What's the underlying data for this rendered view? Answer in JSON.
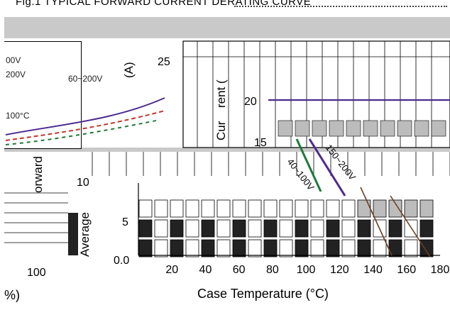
{
  "figure": {
    "title": "Fig.1 TYPICAL FORWARD CURRENT DERATING CURVE"
  },
  "left_panel": {
    "fragments": [
      "00V",
      "200V",
      "60~200V",
      "100°C",
      "(A)",
      "orward",
      "100",
      "%)"
    ]
  },
  "colors": {
    "grid": "#000000",
    "band": "#c9c9c9",
    "cell_dark": "#222222",
    "cell_gray": "#bcbcbc",
    "series_purple": "#4b2a8f",
    "series_green": "#1f7a3a",
    "series_red": "#c0392b",
    "series_brown": "#6b3f22"
  },
  "chart_data": {
    "type": "line",
    "title": "",
    "xlabel": "Case Temperature (°C)",
    "ylabel": "Average Forward Current (A)",
    "ylabel_visible": [
      "Average",
      "Cur",
      "rent ("
    ],
    "xlim": [
      0,
      180
    ],
    "ylim": [
      0,
      25
    ],
    "x_ticks": [
      20,
      40,
      60,
      80,
      100,
      120,
      140,
      160,
      180
    ],
    "y_ticks": [
      "0.0",
      "5",
      "10",
      "15",
      "20",
      "25"
    ],
    "series": [
      {
        "name": "40~100V",
        "x": [
          0,
          100,
          125
        ],
        "y": [
          20,
          20,
          0
        ]
      },
      {
        "name": "150~200V",
        "x": [
          0,
          110,
          135
        ],
        "y": [
          20,
          20,
          0
        ]
      },
      {
        "name": "",
        "x": [
          0,
          145,
          175
        ],
        "y": [
          20,
          20,
          0
        ]
      }
    ],
    "grid": true,
    "legend": "none"
  }
}
